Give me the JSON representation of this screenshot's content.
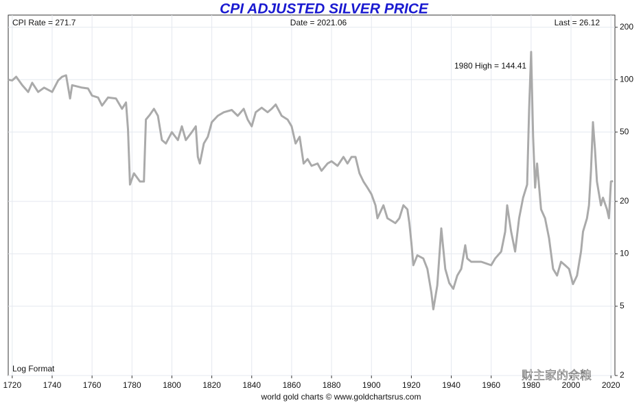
{
  "chart_data": {
    "type": "line",
    "title": "CPI ADJUSTED SILVER PRICE",
    "cpi_label": "CPI Rate = 271.7",
    "date_label": "Date = 2021.06",
    "last_label": "Last = 26.12",
    "high_label": "1980 High = 144.41",
    "scale_label": "Log Format",
    "source": "world gold charts © www.goldchartsrus.com",
    "watermark": "财主家的余粮",
    "log_scale": true,
    "grid": true,
    "xlim": [
      1718,
      2022
    ],
    "xticks": [
      1720,
      1740,
      1760,
      1780,
      1800,
      1820,
      1840,
      1860,
      1880,
      1900,
      1920,
      1940,
      1960,
      1980,
      2000,
      2020
    ],
    "ylim": [
      2,
      235
    ],
    "yticks": [
      2,
      5,
      10,
      20,
      50,
      100,
      200
    ],
    "series": [
      {
        "name": "CPI adjusted silver price",
        "color": "#aaaaaa",
        "x": [
          1718,
          1720,
          1722,
          1725,
          1728,
          1730,
          1733,
          1736,
          1740,
          1743,
          1745,
          1747,
          1749,
          1750,
          1755,
          1758,
          1760,
          1763,
          1765,
          1768,
          1772,
          1775,
          1777,
          1778,
          1779,
          1781,
          1784,
          1786,
          1787,
          1789,
          1791,
          1793,
          1795,
          1797,
          1800,
          1803,
          1805,
          1807,
          1810,
          1812,
          1813,
          1814,
          1816,
          1818,
          1820,
          1823,
          1826,
          1830,
          1833,
          1836,
          1838,
          1840,
          1842,
          1845,
          1848,
          1850,
          1852,
          1855,
          1858,
          1860,
          1862,
          1864,
          1866,
          1868,
          1870,
          1873,
          1875,
          1878,
          1880,
          1883,
          1886,
          1888,
          1890,
          1892,
          1894,
          1896,
          1898,
          1900,
          1902,
          1903,
          1906,
          1908,
          1910,
          1912,
          1914,
          1916,
          1918,
          1919,
          1920,
          1921,
          1923,
          1926,
          1928,
          1930,
          1931,
          1933,
          1935,
          1937,
          1939,
          1941,
          1943,
          1945,
          1947,
          1948,
          1950,
          1955,
          1960,
          1962,
          1965,
          1967,
          1968,
          1970,
          1972,
          1974,
          1976,
          1978,
          1979,
          1980,
          1981,
          1982,
          1983,
          1985,
          1987,
          1989,
          1991,
          1993,
          1995,
          1997,
          1999,
          2001,
          2003,
          2005,
          2006,
          2008,
          2009,
          2010,
          2011,
          2012,
          2013,
          2015,
          2016,
          2018,
          2019,
          2020,
          2021.06
        ],
        "values": [
          100,
          99,
          104,
          93,
          85,
          96,
          85,
          90,
          85,
          99,
          104,
          106,
          78,
          93,
          90,
          89,
          81,
          79,
          71,
          79,
          78,
          68,
          74,
          52,
          25,
          29,
          26,
          26,
          59,
          63,
          68,
          62,
          45,
          43,
          50,
          45,
          54,
          45,
          50,
          54,
          36,
          33,
          43,
          47,
          57,
          62,
          65,
          67,
          62,
          68,
          59,
          54,
          65,
          69,
          65,
          68,
          72,
          62,
          59,
          54,
          43,
          47,
          33,
          35,
          32,
          33,
          30,
          33,
          34,
          32,
          36,
          33,
          36,
          36,
          29,
          26,
          24,
          22,
          19,
          16,
          19,
          16,
          15.5,
          15,
          16,
          19,
          18,
          15,
          11.6,
          8.6,
          9.8,
          9.4,
          8.2,
          6,
          4.8,
          6.6,
          14,
          8.2,
          6.8,
          6.3,
          7.5,
          8.2,
          11.2,
          9.4,
          9,
          9,
          8.6,
          9.4,
          10.3,
          13.4,
          19,
          13.4,
          10.3,
          16,
          21,
          25,
          68,
          144.41,
          47,
          24,
          33,
          18,
          16,
          12.3,
          8.2,
          7.5,
          9,
          8.6,
          8.2,
          6.7,
          7.5,
          10.3,
          13.4,
          16,
          19,
          30,
          57,
          40,
          26,
          19,
          21,
          18,
          16,
          26,
          26.12
        ]
      }
    ]
  }
}
